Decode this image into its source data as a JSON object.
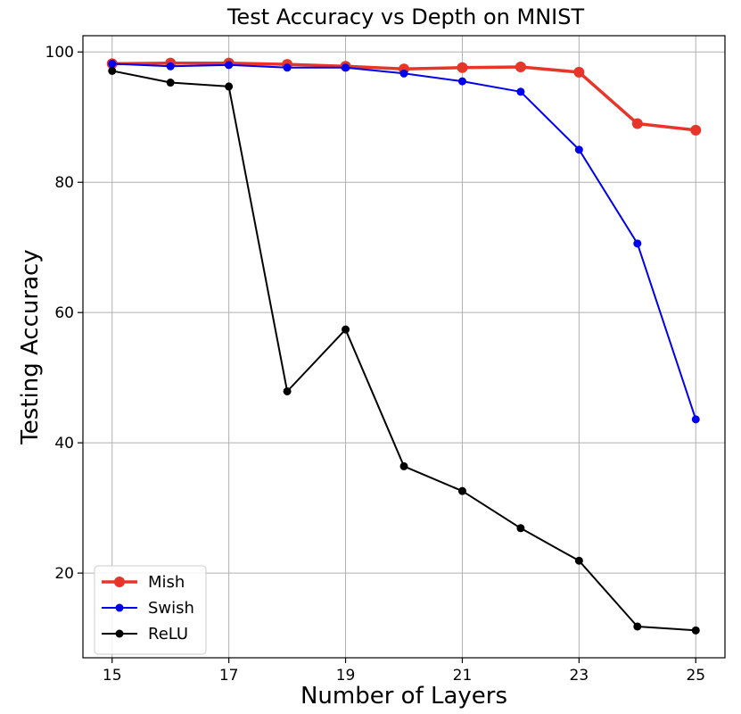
{
  "chart_data": {
    "type": "line",
    "title": "Test Accuracy vs Depth on MNIST",
    "xlabel": "Number of Layers",
    "ylabel": "Testing Accuracy",
    "x": [
      15,
      16,
      17,
      18,
      19,
      20,
      21,
      22,
      23,
      24,
      25
    ],
    "xticks": [
      15,
      17,
      19,
      21,
      23,
      25
    ],
    "yticks": [
      20,
      40,
      60,
      80,
      100
    ],
    "xlim": [
      14.5,
      25.5
    ],
    "ylim": [
      7,
      102.5
    ],
    "grid": true,
    "legend_position": "lower-left",
    "series": [
      {
        "name": "Mish",
        "color": "#e8352a",
        "line_width": 3.5,
        "marker_radius": 6,
        "values": [
          98.2,
          98.3,
          98.3,
          98.1,
          97.8,
          97.4,
          97.6,
          97.7,
          96.9,
          89.0,
          88.0
        ]
      },
      {
        "name": "Swish",
        "color": "#0000ee",
        "line_width": 2,
        "marker_radius": 4.5,
        "values": [
          98.2,
          97.8,
          98.0,
          97.6,
          97.6,
          96.7,
          95.5,
          93.9,
          85.0,
          70.6,
          43.6
        ]
      },
      {
        "name": "ReLU",
        "color": "#000000",
        "line_width": 2,
        "marker_radius": 4.5,
        "values": [
          97.1,
          95.3,
          94.7,
          47.9,
          57.4,
          36.4,
          32.6,
          26.9,
          21.9,
          11.8,
          11.2
        ]
      }
    ]
  }
}
